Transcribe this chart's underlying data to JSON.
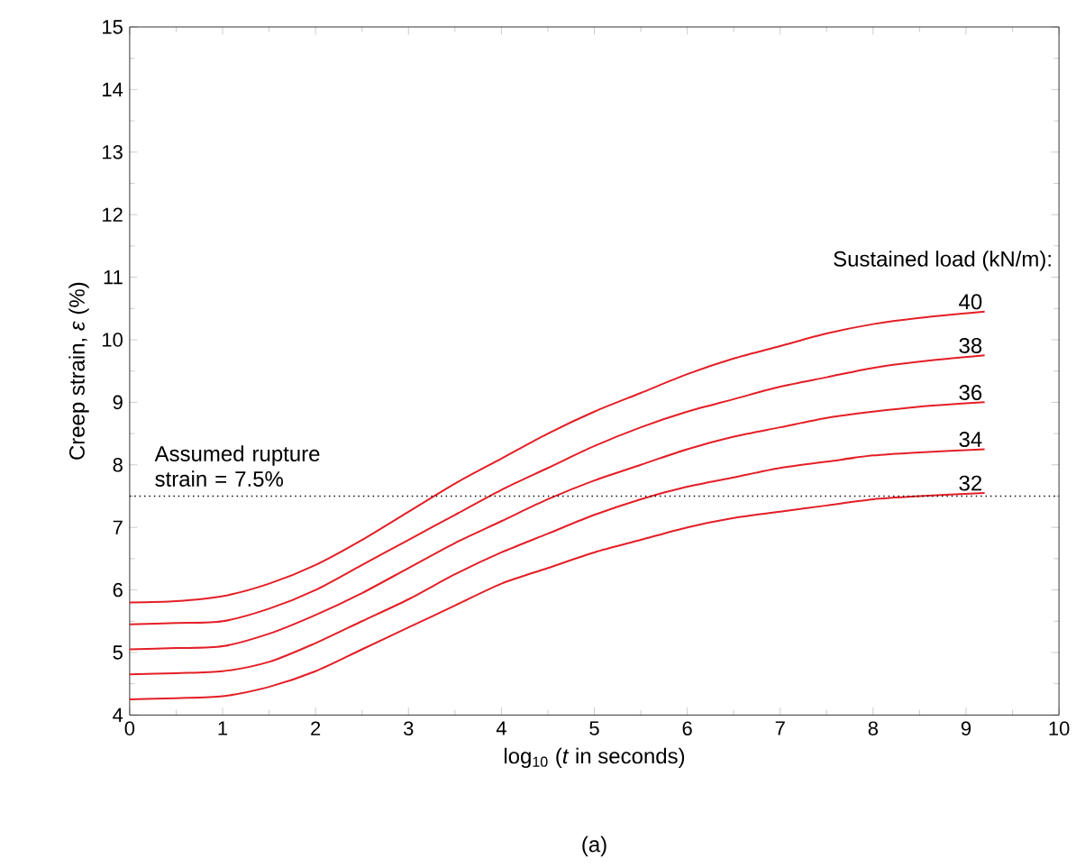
{
  "chart_data": {
    "type": "line",
    "xlabel": "log$_{10}$ (*t* in seconds)",
    "ylabel": "Creep strain, *ε* (%)",
    "legend_title": "Sustained load (kN/m):",
    "x": [
      0,
      0.5,
      1,
      1.5,
      2,
      2.5,
      3,
      3.5,
      4,
      4.5,
      5,
      5.5,
      6,
      6.5,
      7,
      7.5,
      8,
      8.5,
      9.2
    ],
    "series": [
      {
        "name": "40",
        "color": "#e41e26",
        "values": [
          5.8,
          5.82,
          5.9,
          6.1,
          6.4,
          6.8,
          7.25,
          7.7,
          8.1,
          8.5,
          8.85,
          9.15,
          9.45,
          9.7,
          9.9,
          10.1,
          10.25,
          10.35,
          10.45
        ]
      },
      {
        "name": "38",
        "color": "#e41e26",
        "values": [
          5.45,
          5.47,
          5.5,
          5.7,
          6.0,
          6.4,
          6.8,
          7.2,
          7.6,
          7.95,
          8.3,
          8.6,
          8.85,
          9.05,
          9.25,
          9.4,
          9.55,
          9.65,
          9.75
        ]
      },
      {
        "name": "36",
        "color": "#e41e26",
        "values": [
          5.05,
          5.07,
          5.1,
          5.3,
          5.6,
          5.95,
          6.35,
          6.75,
          7.1,
          7.45,
          7.75,
          8.0,
          8.25,
          8.45,
          8.6,
          8.75,
          8.85,
          8.93,
          9.0
        ]
      },
      {
        "name": "34",
        "color": "#e41e26",
        "values": [
          4.65,
          4.67,
          4.7,
          4.85,
          5.15,
          5.5,
          5.85,
          6.25,
          6.6,
          6.9,
          7.2,
          7.45,
          7.65,
          7.8,
          7.95,
          8.05,
          8.15,
          8.2,
          8.25
        ]
      },
      {
        "name": "32",
        "color": "#e41e26",
        "values": [
          4.25,
          4.27,
          4.3,
          4.45,
          4.7,
          5.05,
          5.4,
          5.75,
          6.1,
          6.35,
          6.6,
          6.8,
          7.0,
          7.15,
          7.25,
          7.35,
          7.45,
          7.5,
          7.55
        ]
      }
    ],
    "xlim": [
      0,
      10
    ],
    "ylim": [
      4,
      15
    ],
    "xticks": [
      0,
      1,
      2,
      3,
      4,
      5,
      6,
      7,
      8,
      9,
      10
    ],
    "yticks": [
      4,
      5,
      6,
      7,
      8,
      9,
      10,
      11,
      12,
      13,
      14,
      15
    ],
    "ref_lines": [
      {
        "axis": "y",
        "value": 7.5,
        "label": "Assumed rupture strain = 7.5%",
        "line_style": "dotted",
        "color": "#000000"
      }
    ],
    "annotations": [
      "(a)"
    ],
    "grid": false,
    "line_style": "solid"
  }
}
